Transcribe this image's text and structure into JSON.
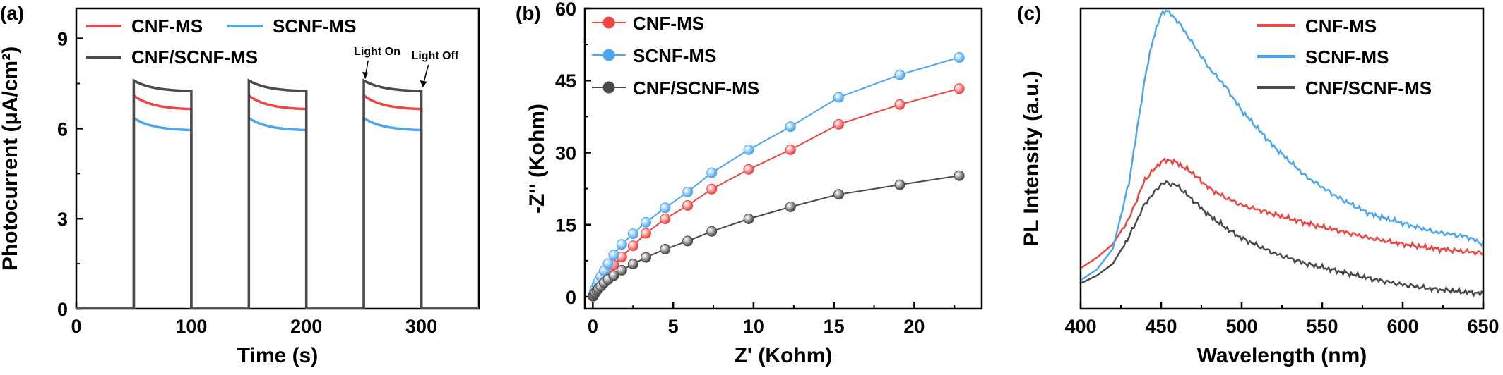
{
  "panel_labels": [
    "(a)",
    "(b)",
    "(c)"
  ],
  "colors": {
    "cnf_ms": "#ee4444",
    "scnf_ms": "#4da6ee",
    "cnf_scnf_ms": "#4a4a4a"
  },
  "chart_data": [
    {
      "type": "line",
      "panel": "(a)",
      "xlabel": "Time (s)",
      "ylabel": "Photocurrent (μA/cm²)",
      "xlim": [
        0,
        350
      ],
      "ylim": [
        0,
        10
      ],
      "xticks": [
        0,
        100,
        200,
        300
      ],
      "yticks": [
        0,
        3,
        6,
        9
      ],
      "legend_position": "top",
      "annotations": [
        {
          "text": "Light On",
          "x": 250,
          "y": 7.6
        },
        {
          "text": "Light Off",
          "x": 300,
          "y": 7.3
        }
      ],
      "series": [
        {
          "name": "CNF-MS",
          "color": "#ee4444",
          "x": [
            0,
            50,
            50,
            100,
            100,
            150,
            150,
            200,
            200,
            250,
            250,
            300,
            300,
            350
          ],
          "y": [
            0,
            0,
            7.1,
            6.65,
            0,
            0,
            7.1,
            6.65,
            0,
            0,
            7.1,
            6.65,
            0,
            0
          ]
        },
        {
          "name": "SCNF-MS",
          "color": "#4da6ee",
          "x": [
            0,
            50,
            50,
            100,
            100,
            150,
            150,
            200,
            200,
            250,
            250,
            300,
            300,
            350
          ],
          "y": [
            0,
            0,
            6.35,
            5.95,
            0,
            0,
            6.35,
            5.95,
            0,
            0,
            6.35,
            5.95,
            0,
            0
          ]
        },
        {
          "name": "CNF/SCNF-MS",
          "color": "#4a4a4a",
          "x": [
            0,
            50,
            50,
            100,
            100,
            150,
            150,
            200,
            200,
            250,
            250,
            300,
            300,
            350
          ],
          "y": [
            0,
            0,
            7.6,
            7.25,
            0,
            0,
            7.6,
            7.25,
            0,
            0,
            7.6,
            7.25,
            0,
            0
          ]
        }
      ]
    },
    {
      "type": "scatter",
      "panel": "(b)",
      "xlabel": "Z' (Kohm)",
      "ylabel": "-Z'' (Kohm)",
      "xlim": [
        -0.5,
        24.2
      ],
      "ylim": [
        -2.5,
        60
      ],
      "xticks": [
        0,
        5,
        10,
        15,
        20
      ],
      "yticks": [
        0,
        15,
        30,
        45,
        60
      ],
      "legend_position": "top-left",
      "series": [
        {
          "name": "CNF-MS",
          "color": "#ee4444",
          "x": [
            0.02,
            0.05,
            0.1,
            0.15,
            0.25,
            0.35,
            0.5,
            0.7,
            0.95,
            1.3,
            1.8,
            2.5,
            3.3,
            4.5,
            5.9,
            7.4,
            9.7,
            12.3,
            15.3,
            19.1,
            22.8
          ],
          "y": [
            0.2,
            0.5,
            0.9,
            1.3,
            1.9,
            2.5,
            3.2,
            4.2,
            5.2,
            6.6,
            8.3,
            10.6,
            13.2,
            16.2,
            19.0,
            22.4,
            26.5,
            30.6,
            35.9,
            40.0,
            43.3
          ]
        },
        {
          "name": "SCNF-MS",
          "color": "#4da6ee",
          "x": [
            0.02,
            0.05,
            0.1,
            0.15,
            0.25,
            0.35,
            0.5,
            0.7,
            0.95,
            1.3,
            1.8,
            2.5,
            3.3,
            4.5,
            5.9,
            7.4,
            9.7,
            12.3,
            15.3,
            19.1,
            22.8
          ],
          "y": [
            0.2,
            0.6,
            1.1,
            1.6,
            2.4,
            3.2,
            4.2,
            5.4,
            6.9,
            8.7,
            10.9,
            13.1,
            15.5,
            18.5,
            21.8,
            25.8,
            30.6,
            35.4,
            41.5,
            46.2,
            49.8
          ]
        },
        {
          "name": "CNF/SCNF-MS",
          "color": "#4a4a4a",
          "x": [
            0.02,
            0.05,
            0.1,
            0.15,
            0.25,
            0.35,
            0.5,
            0.7,
            0.95,
            1.3,
            1.8,
            2.5,
            3.3,
            4.5,
            5.9,
            7.4,
            9.7,
            12.3,
            15.3,
            19.1,
            22.8
          ],
          "y": [
            0.1,
            0.3,
            0.6,
            0.9,
            1.3,
            1.7,
            2.2,
            2.9,
            3.6,
            4.4,
            5.5,
            6.8,
            8.2,
            9.9,
            11.6,
            13.6,
            16.2,
            18.7,
            21.3,
            23.3,
            25.2
          ]
        }
      ]
    },
    {
      "type": "line",
      "panel": "(c)",
      "xlabel": "Wavelength (nm)",
      "ylabel": "PL Intensity (a.u.)",
      "xlim": [
        400,
        650
      ],
      "ylim": [
        0,
        1
      ],
      "xticks": [
        400,
        450,
        500,
        550,
        600,
        650
      ],
      "legend_position": "top-right",
      "series": [
        {
          "name": "CNF-MS",
          "color": "#ee4444",
          "x": [
            400,
            410,
            420,
            430,
            440,
            450,
            455,
            460,
            470,
            480,
            490,
            500,
            520,
            540,
            560,
            580,
            600,
            620,
            640,
            650
          ],
          "y": [
            0.135,
            0.17,
            0.215,
            0.3,
            0.43,
            0.49,
            0.495,
            0.485,
            0.45,
            0.4,
            0.37,
            0.345,
            0.315,
            0.285,
            0.26,
            0.235,
            0.215,
            0.2,
            0.19,
            0.185
          ]
        },
        {
          "name": "SCNF-MS",
          "color": "#4da6ee",
          "x": [
            400,
            410,
            420,
            430,
            440,
            445,
            450,
            453,
            460,
            470,
            480,
            490,
            500,
            520,
            540,
            560,
            580,
            600,
            620,
            640,
            650
          ],
          "y": [
            0.095,
            0.13,
            0.2,
            0.42,
            0.77,
            0.9,
            0.98,
            0.995,
            0.96,
            0.88,
            0.8,
            0.74,
            0.66,
            0.54,
            0.44,
            0.37,
            0.315,
            0.285,
            0.255,
            0.24,
            0.215
          ]
        },
        {
          "name": "CNF/SCNF-MS",
          "color": "#4a4a4a",
          "x": [
            400,
            410,
            420,
            430,
            440,
            450,
            453,
            460,
            470,
            480,
            490,
            500,
            520,
            540,
            560,
            580,
            600,
            620,
            640,
            650
          ],
          "y": [
            0.085,
            0.11,
            0.15,
            0.24,
            0.35,
            0.415,
            0.42,
            0.41,
            0.36,
            0.31,
            0.27,
            0.235,
            0.185,
            0.15,
            0.125,
            0.1,
            0.08,
            0.065,
            0.055,
            0.05
          ]
        }
      ]
    }
  ]
}
